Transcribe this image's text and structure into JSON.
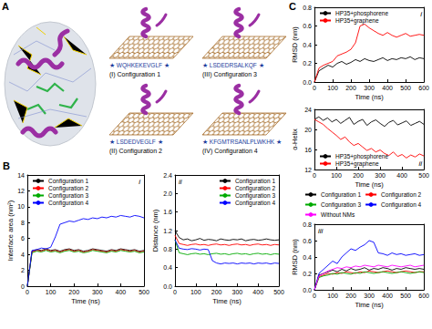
{
  "panel_a": {
    "label": "A",
    "configurations": [
      {
        "label": "(I) Configuration 1",
        "sequence": "★ WQHKEKEVGLF ★"
      },
      {
        "label": "(II) Configuration 2",
        "sequence": "★ LSDEDVEGLF ★"
      },
      {
        "label": "(III) Configuration 3",
        "sequence": "★ LSDEDRSALKQF ★"
      },
      {
        "label": "(IV) Configuration 4",
        "sequence": "★ KFGMTRSANLPLWKHK ★"
      }
    ]
  },
  "panel_labels": [
    "B",
    "C"
  ],
  "chart_data": [
    {
      "type": "line",
      "title": "i",
      "x_label": "Time (ns)",
      "y_label": "Interface area (nm²)",
      "x": [
        0,
        20,
        40,
        60,
        80,
        100,
        120,
        140,
        160,
        180,
        200,
        220,
        240,
        260,
        280,
        300,
        320,
        340,
        360,
        380,
        400,
        420,
        440,
        460,
        480,
        500
      ],
      "series": [
        {
          "name": "Configuration 1",
          "color": "#000000",
          "values": [
            0,
            4.4,
            4.6,
            4.5,
            4.7,
            4.5,
            4.6,
            4.4,
            4.6,
            4.7,
            4.5,
            4.6,
            4.4,
            4.5,
            4.7,
            4.6,
            4.5,
            4.4,
            4.6,
            4.5,
            4.7,
            4.6,
            4.5,
            4.6,
            4.4,
            4.5
          ]
        },
        {
          "name": "Configuration 2",
          "color": "#ff0000",
          "values": [
            0,
            4.3,
            4.5,
            4.4,
            4.6,
            4.4,
            4.5,
            4.3,
            4.5,
            4.6,
            4.4,
            4.5,
            4.3,
            4.4,
            4.6,
            4.5,
            4.4,
            4.3,
            4.5,
            4.4,
            4.6,
            4.5,
            4.4,
            4.5,
            4.3,
            4.4
          ]
        },
        {
          "name": "Configuration 3",
          "color": "#00aa00",
          "values": [
            0,
            4.2,
            4.4,
            4.3,
            4.5,
            4.3,
            4.4,
            4.2,
            4.4,
            4.5,
            4.3,
            4.4,
            4.2,
            4.3,
            4.5,
            4.4,
            4.3,
            4.2,
            4.4,
            4.3,
            4.5,
            4.4,
            4.3,
            4.4,
            4.2,
            4.3
          ]
        },
        {
          "name": "Configuration 4",
          "color": "#0000ff",
          "values": [
            0,
            4.5,
            4.6,
            4.8,
            4.7,
            4.9,
            6.2,
            7.8,
            8.0,
            8.2,
            8.1,
            8.3,
            8.5,
            8.4,
            8.6,
            8.5,
            8.7,
            8.6,
            8.8,
            8.7,
            8.9,
            8.8,
            8.7,
            8.9,
            8.8,
            8.6
          ]
        }
      ],
      "xlim": [
        0,
        500
      ],
      "xticks": [
        0,
        100,
        200,
        300,
        400,
        500
      ],
      "ylim": [
        0,
        14
      ],
      "yticks": [
        0,
        2,
        4,
        6,
        8,
        10,
        12,
        14
      ],
      "legend": "upper left",
      "grid": false
    },
    {
      "type": "line",
      "title": "ii",
      "x_label": "Time (ns)",
      "y_label": "Distance (nm)",
      "x": [
        0,
        20,
        40,
        60,
        80,
        100,
        120,
        140,
        160,
        180,
        200,
        220,
        240,
        260,
        280,
        300,
        320,
        340,
        360,
        380,
        400,
        420,
        440,
        460,
        480,
        500
      ],
      "series": [
        {
          "name": "Configuration 1",
          "color": "#000000",
          "values": [
            1.2,
            1.05,
            1.0,
            1.02,
            0.98,
            1.0,
            1.03,
            0.99,
            1.01,
            1.0,
            0.98,
            1.02,
            1.0,
            0.99,
            1.01,
            1.0,
            1.02,
            0.98,
            1.0,
            1.01,
            0.99,
            1.0,
            1.02,
            1.0,
            0.99,
            1.0
          ]
        },
        {
          "name": "Configuration 2",
          "color": "#ff0000",
          "values": [
            1.1,
            0.92,
            0.9,
            0.88,
            0.9,
            0.91,
            0.89,
            0.9,
            0.88,
            0.9,
            0.91,
            0.89,
            0.9,
            0.88,
            0.9,
            0.91,
            0.89,
            0.9,
            0.88,
            0.9,
            0.91,
            0.89,
            0.9,
            0.88,
            0.9,
            0.89
          ]
        },
        {
          "name": "Configuration 3",
          "color": "#00aa00",
          "values": [
            1.0,
            0.72,
            0.7,
            0.68,
            0.7,
            0.71,
            0.69,
            0.7,
            0.68,
            0.7,
            0.71,
            0.69,
            0.7,
            0.68,
            0.7,
            0.71,
            0.69,
            0.7,
            0.68,
            0.7,
            0.71,
            0.69,
            0.7,
            0.68,
            0.7,
            0.69
          ]
        },
        {
          "name": "Configuration 4",
          "color": "#0000ff",
          "values": [
            1.0,
            0.82,
            0.8,
            0.79,
            0.81,
            0.8,
            0.78,
            0.8,
            0.79,
            0.55,
            0.5,
            0.48,
            0.5,
            0.49,
            0.5,
            0.48,
            0.5,
            0.49,
            0.5,
            0.48,
            0.5,
            0.49,
            0.5,
            0.48,
            0.5,
            0.49
          ]
        }
      ],
      "xlim": [
        0,
        500
      ],
      "xticks": [
        0,
        100,
        200,
        300,
        400,
        500
      ],
      "ylim": [
        0,
        2.4
      ],
      "yticks": [
        {
          "value": 0,
          "label": "0.0"
        },
        0.4,
        0.8,
        1.2,
        1.6,
        {
          "value": 2,
          "label": "2.0"
        },
        2.4
      ],
      "legend": "upper right",
      "grid": false
    },
    {
      "type": "line",
      "title": "i",
      "x_label": "Time (ns)",
      "y_label": "RMSD (nm)",
      "x": [
        0,
        25,
        50,
        75,
        100,
        125,
        150,
        175,
        200,
        225,
        250,
        275,
        300,
        325,
        350,
        375,
        400,
        425,
        450,
        475,
        500,
        525,
        550,
        575,
        600
      ],
      "series": [
        {
          "name": "HP35+phosphorene",
          "color": "#000000",
          "values": [
            0,
            0.12,
            0.15,
            0.18,
            0.16,
            0.2,
            0.22,
            0.19,
            0.21,
            0.24,
            0.22,
            0.25,
            0.23,
            0.22,
            0.24,
            0.26,
            0.23,
            0.25,
            0.24,
            0.26,
            0.25,
            0.27,
            0.24,
            0.26,
            0.25
          ]
        },
        {
          "name": "HP35+graphene",
          "color": "#ff0000",
          "values": [
            0,
            0.15,
            0.18,
            0.2,
            0.22,
            0.28,
            0.3,
            0.32,
            0.35,
            0.42,
            0.6,
            0.62,
            0.58,
            0.55,
            0.52,
            0.5,
            0.53,
            0.5,
            0.48,
            0.5,
            0.52,
            0.49,
            0.5,
            0.51,
            0.5
          ]
        }
      ],
      "xlim": [
        0,
        600
      ],
      "xticks": [
        0,
        100,
        200,
        300,
        400,
        500,
        600
      ],
      "ylim": [
        0,
        0.8
      ],
      "yticks": [
        {
          "value": 0,
          "label": "0.0"
        },
        0.2,
        0.4,
        0.6,
        0.8
      ],
      "legend": "upper left",
      "grid": false
    },
    {
      "type": "line",
      "title": "ii",
      "x_label": "Time (ns)",
      "y_label": "α-Helix",
      "x": [
        0,
        20,
        40,
        60,
        80,
        100,
        120,
        140,
        160,
        180,
        200,
        220,
        240,
        260,
        280,
        300,
        320,
        340,
        360,
        380,
        400,
        420,
        440,
        460,
        480,
        500
      ],
      "series": [
        {
          "name": "HP35+phosphorene",
          "color": "#000000",
          "values": [
            22,
            22.5,
            21.8,
            22.3,
            21.5,
            22,
            21.2,
            21.8,
            22.4,
            21,
            21.6,
            22,
            20.8,
            21.5,
            21.9,
            21.2,
            20.6,
            21.4,
            21.8,
            20.9,
            21.3,
            21.7,
            20.8,
            21.2,
            21.6,
            21
          ]
        },
        {
          "name": "HP35+graphene",
          "color": "#ff0000",
          "values": [
            22,
            21.5,
            21,
            20.2,
            19.5,
            18.8,
            18,
            18.5,
            17.5,
            16.8,
            17.2,
            16.5,
            15.8,
            16.2,
            15.5,
            15.9,
            15.2,
            14.8,
            15.5,
            14.6,
            15,
            14.3,
            14.9,
            14.5,
            15.1,
            14.7
          ]
        }
      ],
      "xlim": [
        0,
        500
      ],
      "xticks": [
        0,
        100,
        200,
        300,
        400,
        500
      ],
      "ylim": [
        12,
        24
      ],
      "yticks": [
        12,
        16,
        20,
        24
      ],
      "legend": "lower left",
      "grid": false
    },
    {
      "type": "line",
      "title": "iii",
      "x_label": "Time (ns)",
      "y_label": "RMSD (nm)",
      "x": [
        0,
        25,
        50,
        75,
        100,
        125,
        150,
        175,
        200,
        225,
        250,
        275,
        300,
        325,
        350,
        375,
        400,
        425,
        450,
        475,
        500,
        525,
        550,
        575,
        600
      ],
      "series": [
        {
          "name": "Configuration 1",
          "color": "#000000",
          "values": [
            0,
            0.18,
            0.2,
            0.22,
            0.24,
            0.22,
            0.25,
            0.23,
            0.26,
            0.24,
            0.25,
            0.27,
            0.24,
            0.26,
            0.25,
            0.27,
            0.26,
            0.24,
            0.26,
            0.25,
            0.27,
            0.26,
            0.25,
            0.26,
            0.25
          ]
        },
        {
          "name": "Configuration 2",
          "color": "#ff0000",
          "values": [
            0,
            0.16,
            0.18,
            0.2,
            0.19,
            0.21,
            0.2,
            0.22,
            0.21,
            0.2,
            0.22,
            0.21,
            0.23,
            0.22,
            0.21,
            0.22,
            0.23,
            0.22,
            0.21,
            0.22,
            0.23,
            0.22,
            0.21,
            0.22,
            0.22
          ]
        },
        {
          "name": "Configuration 3",
          "color": "#00aa00",
          "values": [
            0,
            0.15,
            0.17,
            0.18,
            0.2,
            0.19,
            0.21,
            0.2,
            0.19,
            0.21,
            0.2,
            0.22,
            0.21,
            0.2,
            0.21,
            0.22,
            0.21,
            0.2,
            0.21,
            0.22,
            0.21,
            0.2,
            0.21,
            0.22,
            0.21
          ]
        },
        {
          "name": "Configuration 4",
          "color": "#0000ff",
          "values": [
            0,
            0.2,
            0.25,
            0.3,
            0.35,
            0.32,
            0.4,
            0.45,
            0.5,
            0.48,
            0.52,
            0.55,
            0.6,
            0.58,
            0.45,
            0.44,
            0.42,
            0.45,
            0.43,
            0.44,
            0.42,
            0.43,
            0.44,
            0.42,
            0.43
          ]
        },
        {
          "name": "Without NMs",
          "color": "#ff00ff",
          "values": [
            0,
            0.17,
            0.2,
            0.23,
            0.25,
            0.27,
            0.26,
            0.28,
            0.27,
            0.29,
            0.28,
            0.3,
            0.29,
            0.28,
            0.3,
            0.29,
            0.28,
            0.3,
            0.29,
            0.28,
            0.29,
            0.3,
            0.28,
            0.29,
            0.3
          ]
        }
      ],
      "xlim": [
        0,
        600
      ],
      "xticks": [
        0,
        100,
        200,
        300,
        400,
        500,
        600
      ],
      "ylim": [
        0,
        0.8
      ],
      "yticks": [
        {
          "value": 0,
          "label": "0.0"
        },
        0.2,
        0.4,
        0.6,
        0.8
      ],
      "legend": "outside top",
      "grid": false
    }
  ]
}
